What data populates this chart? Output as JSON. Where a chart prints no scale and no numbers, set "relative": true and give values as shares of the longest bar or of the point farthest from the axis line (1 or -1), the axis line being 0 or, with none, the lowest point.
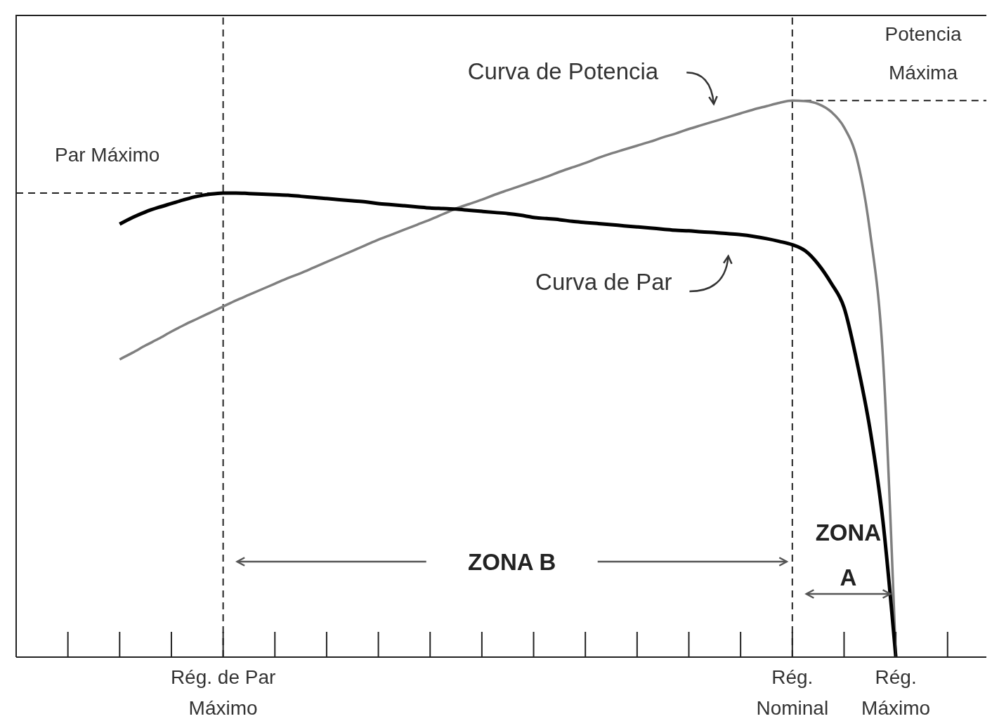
{
  "chart_data": {
    "type": "line",
    "relative": true,
    "categories": [
      null,
      null,
      null,
      null,
      null,
      null,
      null,
      null,
      null,
      null,
      null,
      null,
      null,
      null,
      null,
      null,
      "Rég. de Par Máximo",
      null,
      null,
      null,
      null,
      null,
      null,
      null,
      null,
      null,
      null,
      null,
      null,
      null,
      null,
      null,
      null,
      null,
      null,
      null,
      null,
      null,
      null,
      null,
      null,
      null,
      null,
      null,
      null,
      null,
      null,
      null,
      null,
      null,
      null,
      null,
      null,
      null,
      null,
      null,
      null,
      null,
      null,
      null,
      "Rég. Nominal",
      null,
      null,
      null,
      null,
      null,
      null,
      null,
      "Rég. Máximo",
      null,
      null,
      null,
      null,
      null,
      null,
      null
    ],
    "series": [
      {
        "color": "#7f7f7f",
        "values": [
          null,
          null,
          null,
          null,
          null,
          null,
          null,
          null,
          0.535,
          0.547,
          0.56,
          0.572,
          0.585,
          0.597,
          0.608,
          0.619,
          0.63,
          0.641,
          0.651,
          0.661,
          0.671,
          0.681,
          0.69,
          0.7,
          0.71,
          0.72,
          0.73,
          0.74,
          0.75,
          0.759,
          0.768,
          0.777,
          0.786,
          0.796,
          0.806,
          0.814,
          0.822,
          0.831,
          0.839,
          0.847,
          0.855,
          0.863,
          0.872,
          0.88,
          0.888,
          0.897,
          0.905,
          0.912,
          0.919,
          0.926,
          0.934,
          0.941,
          0.949,
          0.956,
          0.963,
          0.97,
          0.977,
          0.984,
          0.99,
          0.996,
          1,
          0.999,
          0.994,
          0.98,
          0.952,
          0.895,
          0.765,
          0.54,
          0,
          null,
          null,
          null,
          null,
          null,
          null,
          null
        ]
      },
      {
        "color": "#000000",
        "values": [
          null,
          null,
          null,
          null,
          null,
          null,
          null,
          null,
          0.778,
          0.79,
          0.8,
          0.808,
          0.815,
          0.822,
          0.828,
          0.832,
          0.834,
          0.834,
          0.833,
          0.832,
          0.831,
          0.83,
          0.828,
          0.826,
          0.824,
          0.822,
          0.82,
          0.818,
          0.815,
          0.813,
          0.811,
          0.809,
          0.807,
          0.806,
          0.805,
          0.803,
          0.801,
          0.799,
          0.797,
          0.794,
          0.79,
          0.788,
          0.786,
          0.783,
          0.781,
          0.779,
          0.777,
          0.775,
          0.773,
          0.771,
          0.769,
          0.767,
          0.766,
          0.764,
          0.763,
          0.761,
          0.759,
          0.756,
          0.752,
          0.747,
          0.741,
          0.73,
          0.706,
          0.672,
          0.628,
          0.53,
          0.41,
          0.245,
          0,
          null,
          null,
          null,
          null,
          null,
          null,
          null
        ]
      }
    ],
    "ref_lines": [
      {
        "axis": "x",
        "value": "Rég. de Par Máximo",
        "line_style": "dashed"
      },
      {
        "axis": "x",
        "value": "Rég. Nominal",
        "line_style": "dashed"
      },
      {
        "axis": "y",
        "value": 0.834,
        "label": "Par Máximo",
        "line_style": "dashed"
      },
      {
        "axis": "y",
        "value": 1,
        "label": "Potencia Máxima",
        "line_style": "dashed"
      }
    ],
    "annotations": [
      "Curva de Potencia",
      "Curva de Par",
      "ZONA B",
      "ZONA A"
    ]
  }
}
